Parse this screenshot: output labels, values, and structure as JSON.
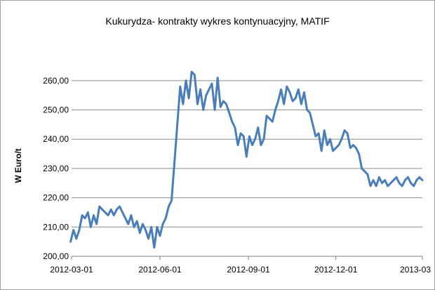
{
  "chart_data": {
    "type": "line",
    "title": "Kukurydza- kontrakty wykres kontynuacyjny, MATIF",
    "xlabel": "",
    "ylabel": "W Euro/t",
    "ylim": [
      200,
      265
    ],
    "y_ticks": [
      "200,00",
      "210,00",
      "220,00",
      "230,00",
      "240,00",
      "250,00",
      "260,00"
    ],
    "x_ticks": [
      "2012-03-01",
      "2012-06-01",
      "2012-09-01",
      "2012-12-01",
      "2013-03"
    ],
    "grid": true,
    "legend": "none",
    "line_color": "#4a7ebb",
    "series": [
      {
        "name": "",
        "x": [
          "2012-02-29",
          "2012-03-03",
          "2012-03-06",
          "2012-03-09",
          "2012-03-12",
          "2012-03-15",
          "2012-03-18",
          "2012-03-21",
          "2012-03-24",
          "2012-03-27",
          "2012-03-30",
          "2012-04-02",
          "2012-04-05",
          "2012-04-08",
          "2012-04-11",
          "2012-04-14",
          "2012-04-17",
          "2012-04-20",
          "2012-04-23",
          "2012-04-26",
          "2012-04-29",
          "2012-05-02",
          "2012-05-05",
          "2012-05-08",
          "2012-05-11",
          "2012-05-14",
          "2012-05-17",
          "2012-05-20",
          "2012-05-23",
          "2012-05-26",
          "2012-05-29",
          "2012-06-01",
          "2012-06-04",
          "2012-06-07",
          "2012-06-10",
          "2012-06-13",
          "2012-06-16",
          "2012-06-19",
          "2012-06-22",
          "2012-06-25",
          "2012-06-28",
          "2012-07-01",
          "2012-07-04",
          "2012-07-07",
          "2012-07-10",
          "2012-07-13",
          "2012-07-16",
          "2012-07-19",
          "2012-07-22",
          "2012-07-25",
          "2012-07-28",
          "2012-07-31",
          "2012-08-03",
          "2012-08-06",
          "2012-08-09",
          "2012-08-12",
          "2012-08-15",
          "2012-08-18",
          "2012-08-21",
          "2012-08-24",
          "2012-08-27",
          "2012-08-30",
          "2012-09-02",
          "2012-09-05",
          "2012-09-08",
          "2012-09-11",
          "2012-09-14",
          "2012-09-17",
          "2012-09-20",
          "2012-09-23",
          "2012-09-26",
          "2012-09-29",
          "2012-10-02",
          "2012-10-05",
          "2012-10-08",
          "2012-10-11",
          "2012-10-14",
          "2012-10-17",
          "2012-10-20",
          "2012-10-23",
          "2012-10-26",
          "2012-10-29",
          "2012-11-01",
          "2012-11-04",
          "2012-11-07",
          "2012-11-10",
          "2012-11-13",
          "2012-11-16",
          "2012-11-19",
          "2012-11-22",
          "2012-11-25",
          "2012-11-28",
          "2012-12-01",
          "2012-12-04",
          "2012-12-07",
          "2012-12-10",
          "2012-12-13",
          "2012-12-16",
          "2012-12-19",
          "2012-12-22",
          "2012-12-25",
          "2012-12-28",
          "2012-12-31",
          "2013-01-03",
          "2013-01-06",
          "2013-01-09",
          "2013-01-12",
          "2013-01-15",
          "2013-01-18",
          "2013-01-21",
          "2013-01-24",
          "2013-01-27",
          "2013-01-30",
          "2013-02-02",
          "2013-02-05",
          "2013-02-08",
          "2013-02-11",
          "2013-02-14",
          "2013-02-17",
          "2013-02-20",
          "2013-02-23",
          "2013-02-26",
          "2013-03-01"
        ],
        "values": [
          205,
          209,
          206,
          209,
          214,
          213,
          215,
          210,
          214,
          211,
          217,
          216,
          215,
          214,
          216,
          214,
          216,
          217,
          215,
          213,
          211,
          214,
          210,
          212,
          208,
          211,
          209,
          206,
          210,
          203,
          210,
          207,
          211,
          213,
          217,
          219,
          232,
          245,
          258,
          252,
          260,
          254,
          263,
          262,
          252,
          257,
          250,
          255,
          257,
          259,
          250,
          261,
          251,
          253,
          252,
          249,
          246,
          244,
          238,
          242,
          241,
          234,
          241,
          238,
          240,
          244,
          238,
          240,
          248,
          247,
          246,
          250,
          253,
          257,
          252,
          258,
          256,
          253,
          254,
          257,
          252,
          256,
          250,
          249,
          245,
          241,
          242,
          236,
          243,
          238,
          240,
          236,
          237,
          238,
          240,
          243,
          242,
          237,
          238,
          237,
          235,
          230,
          229,
          228,
          224,
          226,
          224,
          227,
          225,
          226,
          224,
          225,
          226,
          227,
          225,
          224,
          226,
          227,
          225,
          224,
          226,
          227,
          226
        ]
      }
    ]
  }
}
